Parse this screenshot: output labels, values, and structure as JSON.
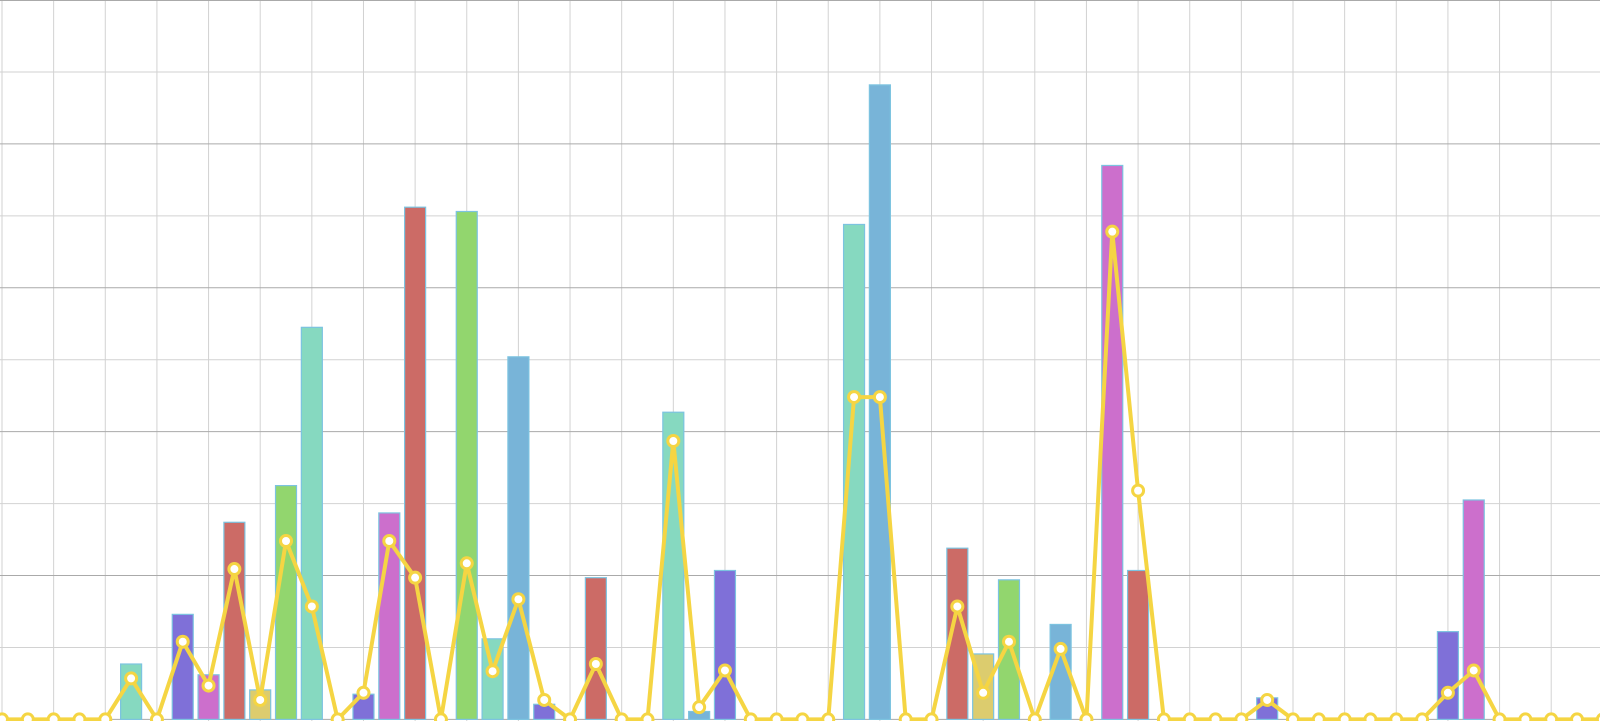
{
  "chart_data": {
    "type": "combo",
    "categories": [
      null,
      null,
      null,
      null,
      null,
      null,
      null,
      null,
      null,
      null,
      null,
      null,
      null,
      null,
      null,
      null,
      null,
      null,
      null,
      null,
      null,
      null,
      null,
      null,
      null,
      null,
      null,
      null,
      null,
      null,
      null,
      null,
      null,
      null,
      null,
      null,
      null,
      null,
      null,
      null,
      null,
      null,
      null,
      null,
      null,
      null,
      null,
      null,
      null,
      null,
      null,
      null,
      null,
      null,
      null,
      null,
      null,
      null,
      null,
      null,
      null,
      null,
      null
    ],
    "palette": [
      "#7f70d8",
      "#cc6fcc",
      "#cc6b66",
      "#dccc6e",
      "#92d66e",
      "#86d9c0",
      "#78b4d8"
    ],
    "series": [
      {
        "type": "bar",
        "values": [
          0,
          0,
          0,
          0,
          0,
          0.77,
          0,
          1.46,
          0.62,
          2.74,
          0.41,
          3.25,
          5.45,
          0,
          0.35,
          2.87,
          7.12,
          0,
          7.06,
          1.12,
          5.04,
          0.21,
          0,
          1.97,
          0,
          0,
          4.27,
          0.11,
          2.07,
          0,
          0,
          0,
          0,
          6.88,
          8.82,
          0,
          0,
          2.38,
          0.91,
          1.94,
          0,
          1.32,
          0,
          7.7,
          2.07,
          0,
          0,
          0,
          0,
          0.3,
          0,
          0,
          0,
          0,
          0,
          0,
          1.22,
          3.05,
          0,
          0,
          0,
          0,
          0
        ]
      },
      {
        "type": "line",
        "color": "#f5d543",
        "values": [
          0,
          0,
          0,
          0,
          0,
          0.57,
          0,
          1.08,
          0.47,
          2.09,
          0.27,
          2.48,
          1.57,
          0,
          0.37,
          2.48,
          1.97,
          0,
          2.17,
          0.67,
          1.67,
          0.27,
          0,
          0.77,
          0,
          0,
          3.87,
          0.17,
          0.68,
          0,
          0,
          0,
          0,
          4.48,
          4.48,
          0,
          0,
          1.57,
          0.37,
          1.08,
          0,
          0.98,
          0,
          6.78,
          3.18,
          0,
          0,
          0,
          0,
          0.27,
          0,
          0,
          0,
          0,
          0,
          0,
          0.37,
          0.68,
          0,
          0,
          0,
          0,
          0
        ]
      }
    ],
    "ylim": [
      0,
      10
    ],
    "yticks": [
      0,
      1,
      2,
      3,
      4,
      5,
      6,
      7,
      8,
      9,
      10
    ],
    "grid": true
  }
}
